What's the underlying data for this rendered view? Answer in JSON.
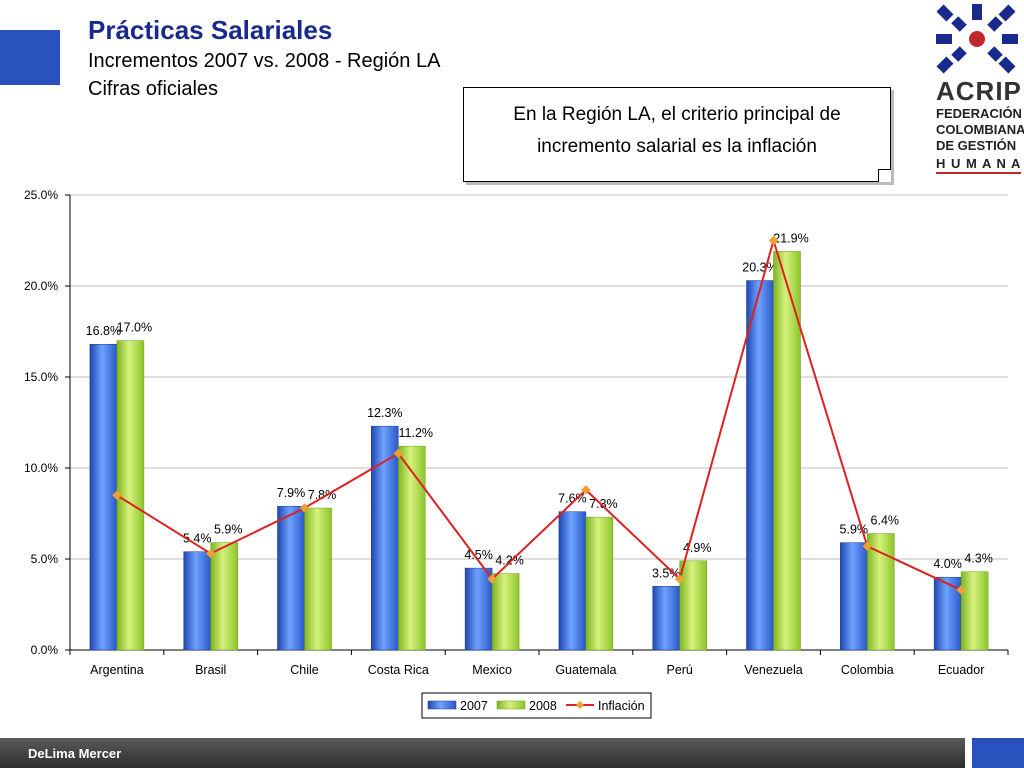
{
  "header": {
    "title": "Prácticas Salariales",
    "subtitle_1": "Incrementos 2007 vs. 2008 - Región LA",
    "subtitle_2": "Cifras oficiales"
  },
  "callout": {
    "line_1": "En la Región LA, el criterio principal de",
    "line_2": "incremento salarial es la inflación"
  },
  "logo": {
    "name": "ACRIP",
    "line_1": "FEDERACIÓN",
    "line_2": "COLOMBIANA",
    "line_3": "DE GESTIÓN",
    "line_4": "H U M A N A",
    "icon": "acrip-logo-icon"
  },
  "footer": {
    "label": "DeLima Mercer"
  },
  "colors": {
    "series_2007": "#3a6fd8",
    "series_2008": "#a6d645",
    "inflation": "#e02020",
    "marker": "#f0a030"
  },
  "chart_data": {
    "type": "bar",
    "categories": [
      "Argentina",
      "Brasil",
      "Chile",
      "Costa Rica",
      "Mexico",
      "Guatemala",
      "Perú",
      "Venezuela",
      "Colombia",
      "Ecuador"
    ],
    "series": [
      {
        "name": "2007",
        "values": [
          16.8,
          5.4,
          7.9,
          12.3,
          4.5,
          7.6,
          3.5,
          20.3,
          5.9,
          4.0
        ],
        "labels": [
          "16.8%",
          "5.4%",
          "7.9%",
          "12.3%",
          "4.5%",
          "7.6%",
          "3.5%",
          "20.3%",
          "5.9%",
          "4.0%"
        ]
      },
      {
        "name": "2008",
        "values": [
          17.0,
          5.9,
          7.8,
          11.2,
          4.2,
          7.3,
          4.9,
          21.9,
          6.4,
          4.3
        ],
        "labels": [
          "17.0%",
          "5.9%",
          "7.8%",
          "11.2%",
          "4.2%",
          "7.3%",
          "4.9%",
          "21.9%",
          "6.4%",
          "4.3%"
        ]
      },
      {
        "name": "Inflación",
        "type": "line",
        "values": [
          8.5,
          5.3,
          7.8,
          10.8,
          3.9,
          8.8,
          3.9,
          22.5,
          5.7,
          3.3
        ]
      }
    ],
    "ylim": [
      0,
      25
    ],
    "yticks": [
      "0.0%",
      "5.0%",
      "10.0%",
      "15.0%",
      "20.0%",
      "25.0%"
    ],
    "legend_position": "bottom",
    "grid": true
  }
}
